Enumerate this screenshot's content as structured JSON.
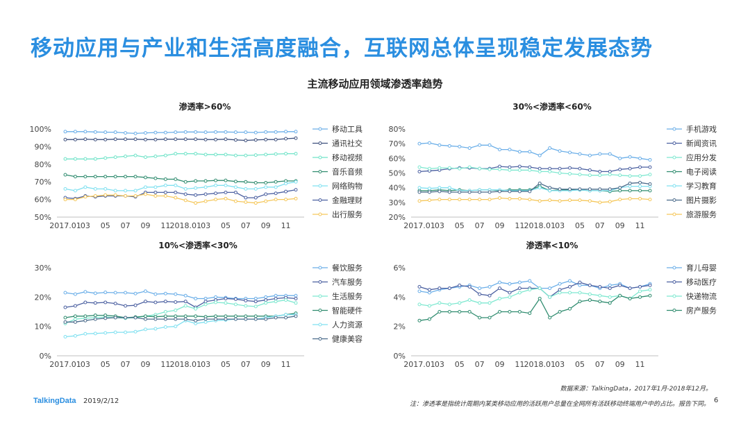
{
  "title": "移动应用与产业和生活高度融合，互联网总体呈现稳定发展态势",
  "subtitle": "主流移动应用领域渗透率趋势",
  "footer": {
    "logo": "TalkingData",
    "date": "2019/2/12",
    "source": "数据来源：TalkingData，2017年1月-2018年12月。",
    "note": "注：渗透率是指统计周期内某类移动应用的活跃用户总量在全网所有活跃移动终端用户中的占比。报告下同。",
    "page": "6"
  },
  "chart_data": [
    {
      "type": "line",
      "title": "渗透率>60%",
      "x_tick_labels": [
        "2017.01",
        "03",
        "05",
        "07",
        "09",
        "11",
        "2018.01",
        "03",
        "05",
        "07",
        "09",
        "11"
      ],
      "ylim": [
        50,
        100
      ],
      "y_ticks": [
        50,
        60,
        70,
        80,
        90,
        100
      ],
      "y_tick_labels": [
        "50%",
        "60%",
        "70%",
        "80%",
        "90%",
        "100%"
      ],
      "legend": "right",
      "series": [
        {
          "name": "移动工具",
          "color": "#6aaee8",
          "values": [
            98.5,
            98.5,
            98.5,
            98.3,
            98.2,
            98.2,
            97.8,
            97.5,
            97.8,
            98,
            98,
            98.2,
            98.3,
            98.3,
            98.2,
            98.3,
            98.3,
            98.2,
            98.2,
            98,
            98.3,
            98.3,
            98.5,
            98.5
          ]
        },
        {
          "name": "通讯社交",
          "color": "#3d4f7c",
          "values": [
            94,
            94,
            94.2,
            94,
            94,
            94.2,
            94.2,
            94.2,
            94,
            94,
            94.2,
            94.2,
            94.2,
            94.2,
            94,
            94,
            94.2,
            93.8,
            93.5,
            93.8,
            94,
            94,
            94.5,
            94.8
          ]
        },
        {
          "name": "移动视频",
          "color": "#6fe3c8",
          "values": [
            83,
            83,
            83,
            83,
            83.5,
            84,
            84.5,
            85,
            84,
            84.5,
            85,
            86,
            86,
            86,
            85.5,
            85.5,
            85.5,
            85,
            85,
            85.2,
            85.5,
            85.8,
            86,
            86
          ]
        },
        {
          "name": "音乐音频",
          "color": "#2e8b6e",
          "values": [
            74,
            73,
            73,
            73,
            73,
            73,
            73,
            73,
            72.5,
            72,
            71.5,
            71.5,
            70,
            70.5,
            70.5,
            70.8,
            70.8,
            70.2,
            70,
            69.5,
            69.5,
            70,
            70.5,
            70.5
          ]
        },
        {
          "name": "网络购物",
          "color": "#7fe0f0",
          "values": [
            66,
            65,
            67,
            66,
            66,
            65,
            65,
            65,
            67,
            67,
            68,
            68,
            66,
            66.5,
            67,
            68,
            68,
            67,
            66,
            66,
            67,
            67,
            69,
            70
          ]
        },
        {
          "name": "金融理财",
          "color": "#4a5fa0",
          "values": [
            61,
            60.5,
            62,
            61.5,
            62,
            62,
            62,
            61.5,
            64,
            64,
            64,
            64,
            63,
            62.5,
            63,
            63.5,
            64,
            64,
            61,
            61,
            63,
            63.5,
            64.5,
            65.5
          ]
        },
        {
          "name": "出行服务",
          "color": "#f5c75a",
          "values": [
            60,
            60,
            61.5,
            62,
            62.5,
            62.5,
            62,
            62,
            63,
            62,
            62,
            61,
            59.5,
            58,
            59,
            60,
            60.5,
            59,
            58.5,
            58,
            59,
            60,
            60,
            60.5
          ]
        }
      ]
    },
    {
      "type": "line",
      "title": "30%<渗透率<60%",
      "x_tick_labels": [
        "2017.01",
        "03",
        "05",
        "07",
        "09",
        "11",
        "2018.01",
        "03",
        "05",
        "07",
        "09",
        "11"
      ],
      "ylim": [
        20,
        80
      ],
      "y_ticks": [
        20,
        30,
        40,
        50,
        60,
        70,
        80
      ],
      "y_tick_labels": [
        "20%",
        "30%",
        "40%",
        "50%",
        "60%",
        "70%",
        "80%"
      ],
      "legend": "right",
      "series": [
        {
          "name": "手机游戏",
          "color": "#6aaee8",
          "values": [
            70,
            70.5,
            69,
            68.5,
            68,
            67,
            69,
            69,
            66,
            66,
            64.5,
            64.5,
            62,
            67,
            65,
            64,
            63,
            62,
            63,
            63,
            60,
            61,
            60,
            59
          ]
        },
        {
          "name": "新闻资讯",
          "color": "#4a5fa0",
          "values": [
            51,
            51.5,
            52,
            53,
            53.5,
            53.5,
            53,
            53,
            54.5,
            54,
            54.5,
            54,
            53,
            53,
            53,
            53.5,
            53,
            52,
            51,
            51,
            52.5,
            53,
            54,
            54
          ]
        },
        {
          "name": "应用分发",
          "color": "#7ee8d0",
          "values": [
            54,
            53,
            53.5,
            53.5,
            53,
            54,
            53,
            52.5,
            52.5,
            52,
            52,
            52,
            51,
            51,
            50,
            49.5,
            49,
            48.5,
            48.5,
            49,
            48.5,
            48,
            48,
            49
          ]
        },
        {
          "name": "电子阅读",
          "color": "#2e8b6e",
          "values": [
            38,
            38,
            38.5,
            38,
            38.5,
            38,
            38.5,
            38.5,
            38,
            38.5,
            38.5,
            38.5,
            41,
            38,
            38.5,
            38.5,
            38.5,
            38,
            38,
            37.5,
            38,
            38,
            38,
            38
          ]
        },
        {
          "name": "学习教育",
          "color": "#7fe0f0",
          "values": [
            40,
            39.5,
            40,
            40,
            38,
            38,
            38.5,
            38.5,
            38.5,
            38,
            38,
            38,
            40,
            38,
            38,
            38,
            38.5,
            38,
            38,
            38,
            40,
            41,
            41,
            41
          ]
        },
        {
          "name": "图片摄影",
          "color": "#4a6a8a",
          "values": [
            37,
            37,
            37.5,
            37,
            37,
            37,
            37,
            37,
            37.5,
            37.5,
            37.5,
            37.5,
            43,
            40,
            39,
            39,
            39,
            39,
            39,
            39,
            40,
            43,
            43.5,
            42.5
          ]
        },
        {
          "name": "旅游服务",
          "color": "#f5c75a",
          "values": [
            31,
            31.5,
            32,
            32,
            32,
            32,
            32,
            32,
            33,
            32.5,
            32.5,
            32,
            31,
            31.5,
            31,
            31.5,
            31.5,
            31,
            30,
            30.5,
            32,
            32.5,
            32.5,
            32
          ]
        }
      ]
    },
    {
      "type": "line",
      "title": "10%<渗透率<30%",
      "x_tick_labels": [
        "2017.01",
        "03",
        "05",
        "07",
        "09",
        "11",
        "2018.01",
        "03",
        "05",
        "07",
        "09",
        "11"
      ],
      "ylim": [
        0,
        30
      ],
      "y_ticks": [
        0,
        10,
        20,
        30
      ],
      "y_tick_labels": [
        "0%",
        "10%",
        "20%",
        "30%"
      ],
      "legend": "right",
      "series": [
        {
          "name": "餐饮服务",
          "color": "#6aaee8",
          "values": [
            21.5,
            21,
            21.8,
            21.3,
            21.6,
            21.5,
            21.5,
            21.2,
            22,
            21,
            21.2,
            21,
            20.5,
            19.5,
            19.5,
            20,
            19.8,
            19.5,
            19.5,
            19.5,
            20,
            20.5,
            20.5,
            20.5
          ]
        },
        {
          "name": "汽车服务",
          "color": "#4a5fa0",
          "values": [
            16.5,
            17,
            18.2,
            18,
            18.2,
            17.8,
            17,
            17.2,
            18.5,
            18.2,
            18.5,
            18.3,
            18.5,
            16.5,
            18.5,
            19,
            19.5,
            19.3,
            18.8,
            18.5,
            19,
            19.5,
            19.8,
            19.5
          ]
        },
        {
          "name": "生活服务",
          "color": "#7ee8d0",
          "values": [
            11,
            12.5,
            12.8,
            13,
            13.2,
            13,
            12.8,
            13,
            13.5,
            14,
            15,
            15.5,
            17,
            16,
            17.5,
            18.2,
            18,
            17.5,
            17,
            16.8,
            18,
            18.5,
            19,
            18
          ]
        },
        {
          "name": "智能硬件",
          "color": "#2e8b6e",
          "values": [
            13,
            13.5,
            13.5,
            13.8,
            13.8,
            13.5,
            13,
            13.2,
            13.5,
            13.3,
            13.5,
            13.5,
            13.5,
            13.5,
            13.3,
            13.5,
            13.5,
            13.5,
            13.5,
            13.5,
            13.5,
            13.5,
            14,
            14.5
          ]
        },
        {
          "name": "人力资源",
          "color": "#7fe0f0",
          "values": [
            6.5,
            6.8,
            7.5,
            7.6,
            7.8,
            8,
            8,
            8.2,
            9,
            9.2,
            9.8,
            10,
            12,
            11,
            11.5,
            12,
            12.2,
            12.5,
            12.5,
            12.5,
            13,
            13.5,
            14,
            14
          ]
        },
        {
          "name": "健康美容",
          "color": "#4a6a8a",
          "values": [
            11.5,
            11.5,
            12,
            12.5,
            12.8,
            13,
            13,
            13,
            12.5,
            12.5,
            12.5,
            12.5,
            12.5,
            12,
            12.5,
            12.5,
            12.5,
            12.5,
            12.5,
            12.5,
            12.5,
            13,
            13,
            13.5
          ]
        }
      ]
    },
    {
      "type": "line",
      "title": "渗透率<10%",
      "x_tick_labels": [
        "2017.01",
        "03",
        "05",
        "07",
        "09",
        "11",
        "2018.01",
        "03",
        "05",
        "07",
        "09",
        "11"
      ],
      "ylim": [
        0,
        6
      ],
      "y_ticks": [
        0,
        2,
        4,
        6
      ],
      "y_tick_labels": [
        "0%",
        "2%",
        "4%",
        "6%"
      ],
      "legend": "right",
      "series": [
        {
          "name": "育儿母婴",
          "color": "#6aaee8",
          "values": [
            4.4,
            4.3,
            4.5,
            4.6,
            4.7,
            4.8,
            4.6,
            4.7,
            5,
            4.9,
            5,
            5.1,
            4.6,
            4.6,
            4.9,
            5.1,
            4.8,
            4.8,
            4.6,
            4.8,
            4.9,
            4.6,
            4.7,
            4.9
          ]
        },
        {
          "name": "移动医疗",
          "color": "#4a5fa0",
          "values": [
            4.7,
            4.5,
            4.6,
            4.6,
            4.8,
            4.7,
            4.2,
            4.1,
            4.6,
            4.3,
            4.6,
            4.6,
            4.6,
            4,
            4.5,
            4.7,
            5,
            4.8,
            4.7,
            4.6,
            4.8,
            4.6,
            4.7,
            4.8
          ]
        },
        {
          "name": "快递物流",
          "color": "#7ee8d0",
          "values": [
            3.5,
            3.4,
            3.6,
            3.5,
            3.6,
            3.8,
            3.6,
            3.6,
            3.9,
            4,
            4.3,
            4.5,
            4.6,
            4,
            4.3,
            4.3,
            4.3,
            4.2,
            4.1,
            4,
            4.1,
            3.9,
            4.4,
            4.5
          ]
        },
        {
          "name": "房产服务",
          "color": "#2e8b6e",
          "values": [
            2.4,
            2.5,
            3,
            3,
            3,
            3,
            2.6,
            2.6,
            3,
            3,
            3,
            2.9,
            3.9,
            2.6,
            3,
            3.2,
            3.7,
            3.8,
            3.7,
            3.6,
            4.1,
            3.9,
            4,
            4.1
          ]
        }
      ]
    }
  ]
}
